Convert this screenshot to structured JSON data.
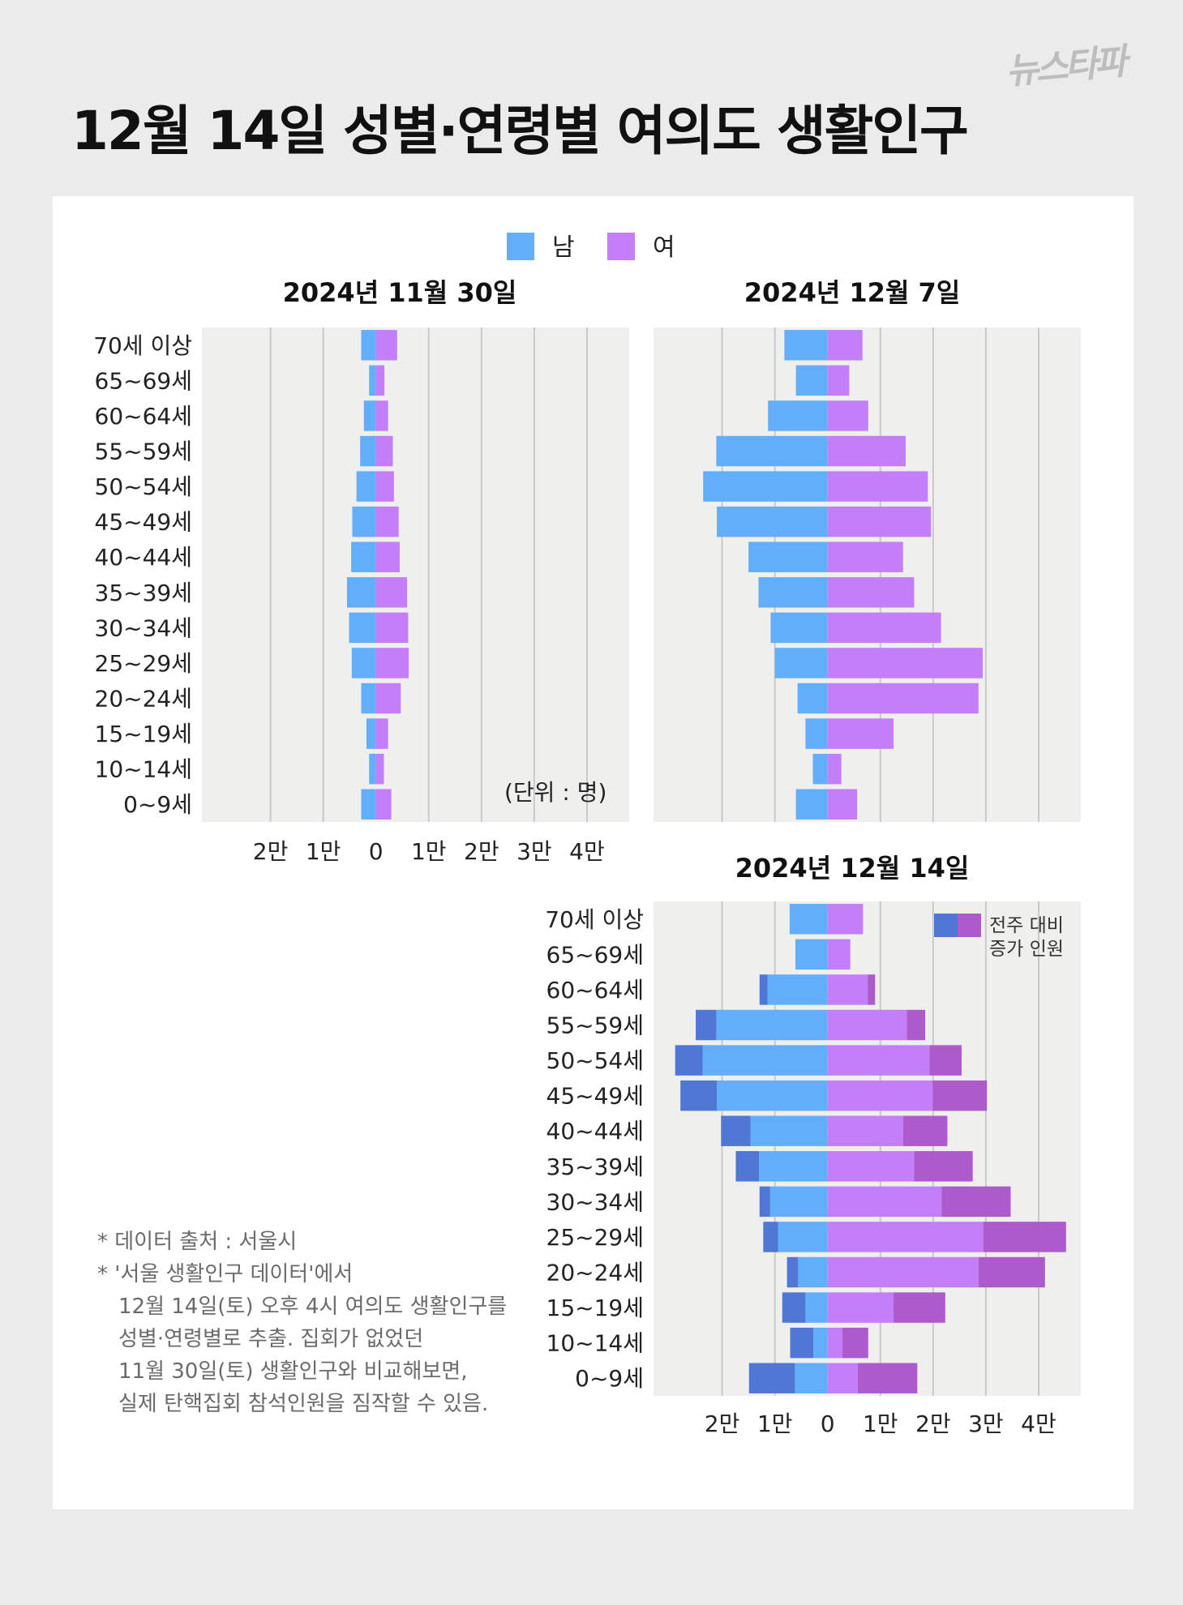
{
  "title": "12월 14일 성별·연령별 여의도 생활인구",
  "logo": "뉴스타파",
  "colors": {
    "background": "#ebebeb",
    "panel": "#ffffff",
    "plot_bg": "#efefee",
    "grid": "#c9c9c9",
    "male": "#63aefb",
    "female": "#c47ef7",
    "male_increase": "#4f77d3",
    "female_increase": "#ad5acd"
  },
  "legend": {
    "male": "남",
    "female": "여"
  },
  "increase_legend": [
    "전주 대비",
    "증가 인원"
  ],
  "unit": "(단위 : 명)",
  "notes": [
    "*  데이터 출처 : 서울시",
    "*  '서울 생활인구 데이터'에서",
    "12월 14일(토) 오후 4시 여의도 생활인구를",
    "성별·연령별로 추출. 집회가 없었던",
    "11월 30일(토) 생활인구와 비교해보면,",
    "실제 탄핵집회 참석인원을 짐작할 수 있음."
  ],
  "chart_data": [
    {
      "type": "bar",
      "orientation": "population-pyramid",
      "title": "2024년 11월 30일",
      "categories": [
        "70세 이상",
        "65~69세",
        "60~64세",
        "55~59세",
        "50~54세",
        "45~49세",
        "40~44세",
        "35~39세",
        "30~34세",
        "25~29세",
        "20~24세",
        "15~19세",
        "10~14세",
        "0~9세"
      ],
      "series": [
        {
          "name": "남",
          "values": [
            2800,
            1300,
            2300,
            3000,
            3700,
            4500,
            4700,
            5500,
            5100,
            4600,
            2800,
            1800,
            1300,
            2800
          ]
        },
        {
          "name": "여",
          "values": [
            4000,
            1600,
            2300,
            3200,
            3400,
            4300,
            4500,
            5900,
            6100,
            6200,
            4700,
            2300,
            1500,
            2900
          ]
        }
      ],
      "xlim": [
        -33000,
        48000
      ],
      "xticks": [
        -20000,
        -10000,
        0,
        10000,
        20000,
        30000,
        40000
      ],
      "xtick_labels": [
        "2만",
        "1만",
        "0",
        "1만",
        "2만",
        "3만",
        "4만"
      ],
      "grid": true
    },
    {
      "type": "bar",
      "orientation": "population-pyramid",
      "title": "2024년 12월 7일",
      "categories": [
        "70세 이상",
        "65~69세",
        "60~64세",
        "55~59세",
        "50~54세",
        "45~49세",
        "40~44세",
        "35~39세",
        "30~34세",
        "25~29세",
        "20~24세",
        "15~19세",
        "10~14세",
        "0~9세"
      ],
      "series": [
        {
          "name": "남",
          "values": [
            8200,
            6000,
            11300,
            21100,
            23600,
            21000,
            15000,
            13100,
            10800,
            10000,
            5700,
            4200,
            2800,
            6000
          ]
        },
        {
          "name": "여",
          "values": [
            6600,
            4100,
            7700,
            14800,
            19000,
            19600,
            14300,
            16400,
            21500,
            29400,
            28600,
            12500,
            2600,
            5600
          ]
        }
      ],
      "xlim": [
        -33000,
        48000
      ],
      "xticks": [
        -20000,
        -10000,
        0,
        10000,
        20000,
        30000,
        40000
      ],
      "grid": true
    },
    {
      "type": "bar",
      "orientation": "population-pyramid",
      "title": "2024년 12월 14일",
      "categories": [
        "70세 이상",
        "65~69세",
        "60~64세",
        "55~59세",
        "50~54세",
        "45~49세",
        "40~44세",
        "35~39세",
        "30~34세",
        "25~29세",
        "20~24세",
        "15~19세",
        "10~14세",
        "0~9세"
      ],
      "series": [
        {
          "name": "남",
          "values": [
            7200,
            6100,
            11400,
            21100,
            23700,
            21000,
            14600,
            13000,
            10900,
            9400,
            5600,
            4200,
            2700,
            6200
          ]
        },
        {
          "name": "여",
          "values": [
            6700,
            4300,
            7600,
            15000,
            19300,
            19900,
            14300,
            16400,
            21600,
            29500,
            28600,
            12500,
            2800,
            5700
          ]
        },
        {
          "name": "전주 대비 증가 인원 (남)",
          "values": [
            0,
            0,
            1500,
            3900,
            5200,
            6900,
            5600,
            4400,
            2000,
            2800,
            2100,
            4400,
            4400,
            8700
          ]
        },
        {
          "name": "전주 대비 증가 인원 (여)",
          "values": [
            0,
            0,
            1400,
            3500,
            6100,
            10300,
            8400,
            11100,
            13100,
            15700,
            12600,
            9800,
            4900,
            11300
          ]
        }
      ],
      "xlim": [
        -33000,
        48000
      ],
      "xticks": [
        -20000,
        -10000,
        0,
        10000,
        20000,
        30000,
        40000
      ],
      "xtick_labels": [
        "2만",
        "1만",
        "0",
        "1만",
        "2만",
        "3만",
        "4만"
      ],
      "grid": true
    }
  ]
}
